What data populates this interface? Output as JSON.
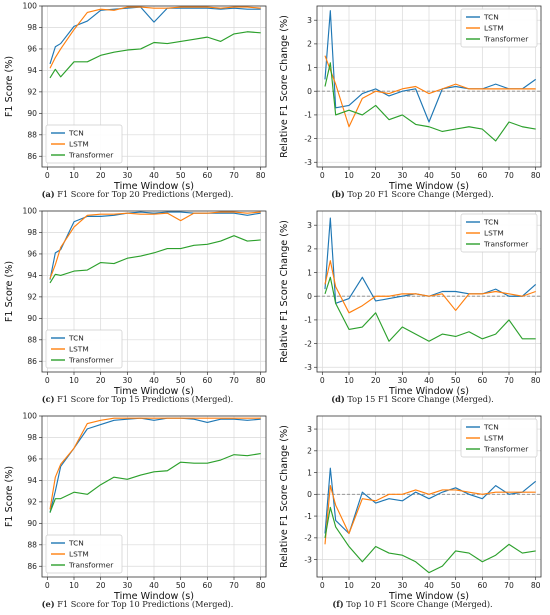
{
  "colors": {
    "TCN": "#1f77b4",
    "LSTM": "#ff7f0e",
    "Transformer": "#2ca02c",
    "grid": "#d9d9d9",
    "zero_line": "#888888"
  },
  "chart_data": [
    {
      "type": "line",
      "caption_label": "(a)",
      "caption_text": "F1 Score for Top 20 Predictions (Merged).",
      "xlabel": "Time Window (s)",
      "ylabel": "F1 Score (%)",
      "xlim": [
        -2,
        82
      ],
      "ylim": [
        85,
        100
      ],
      "xticks": [
        0,
        10,
        20,
        30,
        40,
        50,
        60,
        70,
        80
      ],
      "yticks": [
        86,
        88,
        90,
        92,
        94,
        96,
        98,
        100
      ],
      "grid": true,
      "legend": "lower-left",
      "series": [
        {
          "name": "TCN",
          "x": [
            1,
            3,
            5,
            10,
            15,
            20,
            25,
            30,
            35,
            40,
            45,
            50,
            55,
            60,
            65,
            70,
            75,
            80
          ],
          "y": [
            94.6,
            96.2,
            96.5,
            98.1,
            98.6,
            99.6,
            99.7,
            99.8,
            99.9,
            98.5,
            99.8,
            99.8,
            99.8,
            99.8,
            99.7,
            99.8,
            99.7,
            99.7
          ]
        },
        {
          "name": "LSTM",
          "x": [
            1,
            3,
            5,
            10,
            15,
            20,
            25,
            30,
            35,
            40,
            45,
            50,
            55,
            60,
            65,
            70,
            75,
            80
          ],
          "y": [
            94.2,
            95.2,
            96.0,
            97.8,
            99.4,
            99.7,
            99.6,
            99.9,
            99.9,
            99.8,
            99.8,
            99.9,
            99.9,
            99.9,
            99.8,
            99.9,
            99.9,
            99.8
          ]
        },
        {
          "name": "Transformer",
          "x": [
            1,
            3,
            5,
            10,
            15,
            20,
            25,
            30,
            35,
            40,
            45,
            50,
            55,
            60,
            65,
            70,
            75,
            80
          ],
          "y": [
            93.3,
            94.1,
            93.4,
            94.8,
            94.8,
            95.4,
            95.7,
            95.9,
            96.0,
            96.6,
            96.5,
            96.7,
            96.9,
            97.1,
            96.7,
            97.4,
            97.6,
            97.5
          ]
        }
      ]
    },
    {
      "type": "line",
      "caption_label": "(b)",
      "caption_text": "Top 20 F1 Score Change (Merged).",
      "xlabel": "Time Window (s)",
      "ylabel": "Relative F1 Score Change (%)",
      "xlim": [
        -2,
        82
      ],
      "ylim": [
        -3.2,
        3.6
      ],
      "xticks": [
        0,
        10,
        20,
        30,
        40,
        50,
        60,
        70,
        80
      ],
      "yticks": [
        -3,
        -2,
        -1,
        0,
        1,
        2,
        3
      ],
      "grid": true,
      "zero_line": true,
      "legend": "top-right",
      "series": [
        {
          "name": "TCN",
          "x": [
            1,
            3,
            5,
            10,
            15,
            20,
            25,
            30,
            35,
            40,
            45,
            50,
            55,
            60,
            65,
            70,
            75,
            80
          ],
          "y": [
            0.5,
            3.4,
            -0.7,
            -0.6,
            -0.1,
            0.1,
            -0.2,
            0.0,
            0.1,
            -1.3,
            0.1,
            0.2,
            0.1,
            0.1,
            0.3,
            0.1,
            0.1,
            0.5
          ]
        },
        {
          "name": "LSTM",
          "x": [
            1,
            3,
            5,
            10,
            15,
            20,
            25,
            30,
            35,
            40,
            45,
            50,
            55,
            60,
            65,
            70,
            75,
            80
          ],
          "y": [
            1.5,
            0.9,
            0.3,
            -1.5,
            -0.3,
            0.0,
            -0.1,
            0.1,
            0.2,
            -0.1,
            0.1,
            0.3,
            0.1,
            0.1,
            0.1,
            0.1,
            0.1,
            0.1
          ]
        },
        {
          "name": "Transformer",
          "x": [
            1,
            3,
            5,
            10,
            15,
            20,
            25,
            30,
            35,
            40,
            45,
            50,
            55,
            60,
            65,
            70,
            75,
            80
          ],
          "y": [
            0.2,
            1.2,
            -1.0,
            -0.8,
            -1.0,
            -0.6,
            -1.2,
            -1.0,
            -1.4,
            -1.5,
            -1.7,
            -1.6,
            -1.5,
            -1.6,
            -2.1,
            -1.3,
            -1.5,
            -1.6
          ]
        }
      ]
    },
    {
      "type": "line",
      "caption_label": "(c)",
      "caption_text": "F1 Score for Top 15 Predictions (Merged).",
      "xlabel": "Time Window (s)",
      "ylabel": "F1 Score (%)",
      "xlim": [
        -2,
        82
      ],
      "ylim": [
        85,
        100
      ],
      "xticks": [
        0,
        10,
        20,
        30,
        40,
        50,
        60,
        70,
        80
      ],
      "yticks": [
        86,
        88,
        90,
        92,
        94,
        96,
        98,
        100
      ],
      "grid": true,
      "legend": "lower-left",
      "series": [
        {
          "name": "TCN",
          "x": [
            1,
            3,
            5,
            10,
            15,
            20,
            25,
            30,
            35,
            40,
            45,
            50,
            55,
            60,
            65,
            70,
            75,
            80
          ],
          "y": [
            93.6,
            96.1,
            96.4,
            99.0,
            99.5,
            99.5,
            99.6,
            99.8,
            99.9,
            99.8,
            99.9,
            99.9,
            99.8,
            99.8,
            99.8,
            99.8,
            99.6,
            99.8
          ]
        },
        {
          "name": "LSTM",
          "x": [
            1,
            3,
            5,
            10,
            15,
            20,
            25,
            30,
            35,
            40,
            45,
            50,
            55,
            60,
            65,
            70,
            75,
            80
          ],
          "y": [
            93.7,
            95.0,
            96.6,
            98.5,
            99.6,
            99.7,
            99.7,
            99.8,
            99.7,
            99.7,
            99.8,
            99.1,
            99.8,
            99.8,
            99.9,
            99.9,
            99.8,
            99.9
          ]
        },
        {
          "name": "Transformer",
          "x": [
            1,
            3,
            5,
            10,
            15,
            20,
            25,
            30,
            35,
            40,
            45,
            50,
            55,
            60,
            65,
            70,
            75,
            80
          ],
          "y": [
            93.3,
            94.1,
            94.0,
            94.4,
            94.5,
            95.2,
            95.1,
            95.6,
            95.8,
            96.1,
            96.5,
            96.5,
            96.8,
            96.9,
            97.2,
            97.7,
            97.2,
            97.3
          ]
        }
      ]
    },
    {
      "type": "line",
      "caption_label": "(d)",
      "caption_text": "Top 15 F1 Score Change (Merged).",
      "xlabel": "Time Window (s)",
      "ylabel": "Relative F1 Score Change (%)",
      "xlim": [
        -2,
        82
      ],
      "ylim": [
        -3.2,
        3.6
      ],
      "xticks": [
        0,
        10,
        20,
        30,
        40,
        50,
        60,
        70,
        80
      ],
      "yticks": [
        -3,
        -2,
        -1,
        0,
        1,
        2,
        3
      ],
      "grid": true,
      "zero_line": true,
      "legend": "top-right",
      "series": [
        {
          "name": "TCN",
          "x": [
            1,
            3,
            5,
            10,
            15,
            20,
            25,
            30,
            35,
            40,
            45,
            50,
            55,
            60,
            65,
            70,
            75,
            80
          ],
          "y": [
            0.3,
            3.3,
            -0.3,
            -0.1,
            0.8,
            -0.2,
            -0.1,
            0.0,
            0.1,
            0.0,
            0.2,
            0.2,
            0.1,
            0.1,
            0.3,
            0.0,
            0.0,
            0.5
          ]
        },
        {
          "name": "LSTM",
          "x": [
            1,
            3,
            5,
            10,
            15,
            20,
            25,
            30,
            35,
            40,
            45,
            50,
            55,
            60,
            65,
            70,
            75,
            80
          ],
          "y": [
            0.5,
            1.5,
            0.4,
            -0.7,
            -0.4,
            0.0,
            0.0,
            0.1,
            0.1,
            0.0,
            0.1,
            -0.6,
            0.1,
            0.1,
            0.2,
            0.1,
            0.0,
            0.2
          ]
        },
        {
          "name": "Transformer",
          "x": [
            1,
            3,
            5,
            10,
            15,
            20,
            25,
            30,
            35,
            40,
            45,
            50,
            55,
            60,
            65,
            70,
            75,
            80
          ],
          "y": [
            0.1,
            0.8,
            -0.3,
            -1.4,
            -1.3,
            -0.7,
            -1.9,
            -1.3,
            -1.6,
            -1.9,
            -1.6,
            -1.7,
            -1.5,
            -1.8,
            -1.6,
            -1.0,
            -1.8,
            -1.8
          ]
        }
      ]
    },
    {
      "type": "line",
      "caption_label": "(e)",
      "caption_text": "F1 Score for Top 10 Predictions (Merged).",
      "xlabel": "Time Window (s)",
      "ylabel": "F1 Score (%)",
      "xlim": [
        -2,
        82
      ],
      "ylim": [
        85,
        100
      ],
      "xticks": [
        0,
        10,
        20,
        30,
        40,
        50,
        60,
        70,
        80
      ],
      "yticks": [
        86,
        88,
        90,
        92,
        94,
        96,
        98,
        100
      ],
      "grid": true,
      "legend": "lower-left",
      "series": [
        {
          "name": "TCN",
          "x": [
            1,
            3,
            5,
            10,
            15,
            20,
            25,
            30,
            35,
            40,
            45,
            50,
            55,
            60,
            65,
            70,
            75,
            80
          ],
          "y": [
            91.0,
            93.0,
            95.3,
            97.0,
            98.8,
            99.2,
            99.6,
            99.7,
            99.8,
            99.6,
            99.8,
            99.8,
            99.7,
            99.4,
            99.7,
            99.7,
            99.6,
            99.7
          ]
        },
        {
          "name": "LSTM",
          "x": [
            1,
            3,
            5,
            10,
            15,
            20,
            25,
            30,
            35,
            40,
            45,
            50,
            55,
            60,
            65,
            70,
            75,
            80
          ],
          "y": [
            91.3,
            94.3,
            95.5,
            97.0,
            99.3,
            99.6,
            99.8,
            99.8,
            99.8,
            99.8,
            99.8,
            99.8,
            99.8,
            99.8,
            99.8,
            99.8,
            99.8,
            99.8
          ]
        },
        {
          "name": "Transformer",
          "x": [
            1,
            3,
            5,
            10,
            15,
            20,
            25,
            30,
            35,
            40,
            45,
            50,
            55,
            60,
            65,
            70,
            75,
            80
          ],
          "y": [
            91.0,
            92.3,
            92.3,
            92.9,
            92.7,
            93.6,
            94.3,
            94.1,
            94.5,
            94.8,
            94.9,
            95.7,
            95.6,
            95.6,
            95.9,
            96.4,
            96.3,
            96.5
          ]
        }
      ]
    },
    {
      "type": "line",
      "caption_label": "(f)",
      "caption_text": "Top 10 F1 Score Change (Merged).",
      "xlabel": "Time Window (s)",
      "ylabel": "Relative F1 Score Change (%)",
      "xlim": [
        -2,
        82
      ],
      "ylim": [
        -3.8,
        3.6
      ],
      "xticks": [
        0,
        10,
        20,
        30,
        40,
        50,
        60,
        70,
        80
      ],
      "yticks": [
        -3,
        -2,
        -1,
        0,
        1,
        2,
        3
      ],
      "grid": true,
      "zero_line": true,
      "legend": "top-right",
      "series": [
        {
          "name": "TCN",
          "x": [
            1,
            3,
            5,
            10,
            15,
            20,
            25,
            30,
            35,
            40,
            45,
            50,
            55,
            60,
            65,
            70,
            75,
            80
          ],
          "y": [
            -1.8,
            1.2,
            -1.2,
            -1.8,
            0.1,
            -0.4,
            -0.2,
            -0.3,
            0.1,
            -0.2,
            0.1,
            0.3,
            0.0,
            -0.2,
            0.4,
            0.0,
            0.1,
            0.6
          ]
        },
        {
          "name": "LSTM",
          "x": [
            1,
            3,
            5,
            10,
            15,
            20,
            25,
            30,
            35,
            40,
            45,
            50,
            55,
            60,
            65,
            70,
            75,
            80
          ],
          "y": [
            -2.3,
            0.4,
            -0.5,
            -1.8,
            -0.2,
            -0.3,
            0.0,
            0.0,
            0.2,
            0.0,
            0.2,
            0.2,
            0.1,
            0.0,
            0.1,
            0.1,
            0.1,
            0.1
          ]
        },
        {
          "name": "Transformer",
          "x": [
            1,
            3,
            5,
            10,
            15,
            20,
            25,
            30,
            35,
            40,
            45,
            50,
            55,
            60,
            65,
            70,
            75,
            80
          ],
          "y": [
            -2.0,
            -0.6,
            -1.5,
            -2.4,
            -3.1,
            -2.4,
            -2.7,
            -2.8,
            -3.1,
            -3.6,
            -3.3,
            -2.6,
            -2.7,
            -3.1,
            -2.8,
            -2.3,
            -2.7,
            -2.6
          ]
        }
      ]
    }
  ]
}
